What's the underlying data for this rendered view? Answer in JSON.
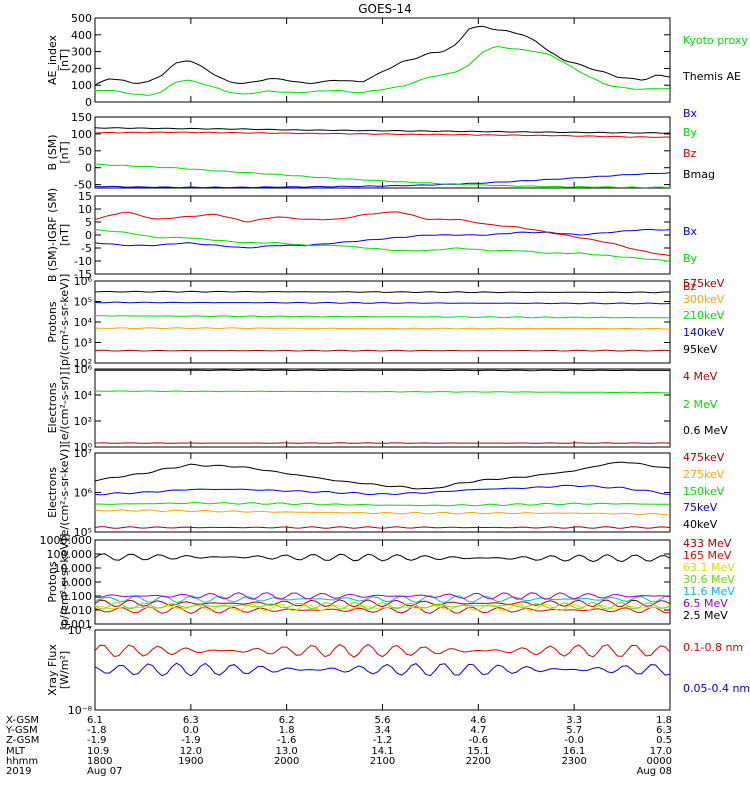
{
  "title": "GOES-14",
  "colors": {
    "black": "#000000",
    "red": "#dd0000",
    "green": "#00dd00",
    "blue": "#0000dd",
    "orange": "#ffa500",
    "cyan": "#00bbdd",
    "purple": "#9900cc",
    "darkred": "#aa0000",
    "lime": "#66dd00",
    "yellow": "#dddd00"
  },
  "chart_data": [
    {
      "type": "line",
      "ylabel": "AE_index\n[nT]",
      "ylim": [
        0,
        500
      ],
      "yticks": [
        "0",
        "100",
        "200",
        "300",
        "400",
        "500"
      ],
      "series": [
        {
          "name": "Kyoto proxy AE",
          "color": "green",
          "values": [
            70,
            70,
            60,
            45,
            40,
            60,
            120,
            130,
            110,
            85,
            60,
            45,
            55,
            65,
            60,
            55,
            60,
            65,
            70,
            60,
            55,
            70,
            80,
            95,
            120,
            150,
            160,
            180,
            220,
            300,
            330,
            320,
            310,
            300,
            280,
            240,
            190,
            150,
            110,
            90,
            80,
            75,
            80,
            80
          ]
        },
        {
          "name": "Themis AE",
          "color": "black",
          "values": [
            100,
            140,
            130,
            110,
            120,
            160,
            230,
            250,
            210,
            160,
            120,
            110,
            120,
            140,
            135,
            120,
            110,
            120,
            130,
            125,
            120,
            160,
            200,
            240,
            260,
            290,
            300,
            340,
            440,
            450,
            430,
            420,
            400,
            360,
            300,
            250,
            230,
            200,
            180,
            150,
            140,
            130,
            160,
            150
          ]
        }
      ]
    },
    {
      "type": "line",
      "ylabel": "B (SM)\n[nT]",
      "ylim": [
        -60,
        150
      ],
      "yticks": [
        "-50",
        "0",
        "50",
        "100",
        "150"
      ],
      "series": [
        {
          "name": "Bx",
          "color": "blue",
          "values": [
            -55,
            -57,
            -58,
            -58,
            -58,
            -57,
            -56,
            -55,
            -53,
            -50,
            -46,
            -40,
            -34,
            -27,
            -20,
            -15
          ]
        },
        {
          "name": "By",
          "color": "green",
          "values": [
            10,
            5,
            0,
            -8,
            -15,
            -22,
            -30,
            -36,
            -42,
            -47,
            -51,
            -54,
            -56,
            -57,
            -58,
            -58
          ]
        },
        {
          "name": "Bz",
          "color": "red",
          "values": [
            103,
            104,
            105,
            104,
            103,
            102,
            101,
            100,
            99,
            98,
            97,
            96,
            95,
            93,
            91,
            90
          ]
        },
        {
          "name": "Bmag",
          "color": "black",
          "values": [
            118,
            117,
            116,
            115,
            114,
            112,
            111,
            110,
            109,
            108,
            107,
            106,
            105,
            104,
            103,
            103
          ]
        }
      ]
    },
    {
      "type": "line",
      "ylabel": "B (SM)-IGRF (SM)\n[nT]",
      "ylim": [
        -15,
        15
      ],
      "yticks": [
        "-15",
        "-10",
        "-5",
        "0",
        "5",
        "10",
        "15"
      ],
      "series": [
        {
          "name": "Bx",
          "color": "blue",
          "values": [
            -3,
            -4,
            -4,
            -3,
            -4,
            -5,
            -4,
            -4,
            -3,
            -2,
            -1,
            0,
            0,
            0,
            1,
            1,
            0,
            1,
            2,
            2
          ]
        },
        {
          "name": "By",
          "color": "green",
          "values": [
            2,
            1,
            -1,
            -1,
            -2,
            -3,
            -3,
            -4,
            -4,
            -5,
            -6,
            -6,
            -5,
            -6,
            -6,
            -7,
            -7,
            -8,
            -9,
            -10
          ]
        },
        {
          "name": "Bz",
          "color": "red",
          "values": [
            6,
            9,
            6,
            7,
            8,
            5,
            7,
            6,
            6,
            8,
            9,
            6,
            6,
            4,
            3,
            1,
            -1,
            -3,
            -6,
            -8
          ]
        }
      ]
    },
    {
      "type": "line",
      "ylabel": "Protons\n[p/(cm²-s-sr-keV)]",
      "yscale": "log",
      "ylim": [
        100,
        1000000
      ],
      "yticks": [
        "10²",
        "10³",
        "10⁴",
        "10⁵",
        "10⁶"
      ],
      "series": [
        {
          "name": "575keV",
          "color": "darkred",
          "values": [
            400,
            400,
            400,
            400,
            400
          ]
        },
        {
          "name": "300keV",
          "color": "orange",
          "values": [
            5000,
            5000,
            4800,
            4800,
            4700
          ]
        },
        {
          "name": "210keV",
          "color": "green",
          "values": [
            20000,
            19000,
            18000,
            17000,
            16000
          ]
        },
        {
          "name": "140keV",
          "color": "blue",
          "values": [
            90000,
            88000,
            85000,
            82000,
            80000
          ]
        },
        {
          "name": "95keV",
          "color": "black",
          "values": [
            300000,
            300000,
            290000,
            280000,
            280000
          ]
        }
      ]
    },
    {
      "type": "line",
      "ylabel": "Electrons\n[e/(cm²-s-sr)]",
      "yscale": "log",
      "ylim": [
        1,
        1000000
      ],
      "yticks": [
        "10⁰",
        "10²",
        "10⁴",
        "10⁶"
      ],
      "series": [
        {
          "name": "4 MeV",
          "color": "darkred",
          "values": [
            2,
            2,
            2,
            2,
            2
          ]
        },
        {
          "name": "2 MeV",
          "color": "green",
          "values": [
            20000,
            19000,
            18000,
            17000,
            15000
          ]
        },
        {
          "name": "0.6 MeV",
          "color": "black",
          "values": [
            800000,
            800000,
            790000,
            780000,
            780000
          ]
        }
      ]
    },
    {
      "type": "line",
      "ylabel": "Electrons\n[e/(cm²-s-sr-keV)]",
      "yscale": "log",
      "ylim": [
        100000,
        10000000
      ],
      "yticks": [
        "10⁵",
        "10⁶",
        "10⁷"
      ],
      "series": [
        {
          "name": "475keV",
          "color": "darkred",
          "values": [
            130000,
            130000,
            130000,
            130000,
            130000,
            130000,
            130000,
            130000,
            130000,
            130000,
            130000,
            130000,
            130000
          ]
        },
        {
          "name": "275keV",
          "color": "orange",
          "values": [
            350000,
            350000,
            340000,
            330000,
            320000,
            310000,
            300000,
            300000,
            300000,
            300000,
            300000,
            290000,
            280000
          ]
        },
        {
          "name": "150keV",
          "color": "green",
          "values": [
            500000,
            520000,
            540000,
            530000,
            520000,
            500000,
            480000,
            470000,
            480000,
            500000,
            520000,
            520000,
            500000
          ]
        },
        {
          "name": "75keV",
          "color": "blue",
          "values": [
            900000,
            1000000,
            1200000,
            1200000,
            1100000,
            1000000,
            900000,
            1000000,
            1200000,
            1300000,
            1500000,
            1300000,
            900000
          ]
        },
        {
          "name": "40keV",
          "color": "black",
          "values": [
            2000000,
            3000000,
            5000000,
            4500000,
            3000000,
            2000000,
            1500000,
            1200000,
            2000000,
            2500000,
            3500000,
            6000000,
            4000000
          ]
        }
      ]
    },
    {
      "type": "line",
      "ylabel": "Protons\n[p/(cm²-s-sr-keV)]",
      "yscale": "log",
      "ylim": [
        0.001,
        1000
      ],
      "yticks": [
        "0.001",
        "0.010",
        "0.100",
        "1.000",
        "10.000",
        "100.000",
        "1000.000"
      ],
      "series": [
        {
          "name": "433 MeV",
          "color": "darkred",
          "values": [
            0.03,
            0.03,
            0.03,
            0.03,
            0.03
          ]
        },
        {
          "name": "165 MeV",
          "color": "red",
          "values": [
            0.01,
            0.01,
            0.01,
            0.01,
            0.01
          ]
        },
        {
          "name": "63.1 MeV",
          "color": "yellow",
          "values": [
            0.015,
            0.015,
            0.015,
            0.015,
            0.015
          ]
        },
        {
          "name": "30.6 MeV",
          "color": "lime",
          "values": [
            0.02,
            0.02,
            0.02,
            0.02,
            0.02
          ]
        },
        {
          "name": "11.6 MeV",
          "color": "cyan",
          "values": [
            0.06,
            0.06,
            0.06,
            0.06,
            0.06
          ]
        },
        {
          "name": "6.5 MeV",
          "color": "purple",
          "values": [
            0.1,
            0.1,
            0.1,
            0.1,
            0.1
          ]
        },
        {
          "name": "2.5 MeV",
          "color": "black",
          "values": [
            60,
            60,
            55,
            50,
            50
          ]
        }
      ]
    },
    {
      "type": "line",
      "ylabel": "Xray Flux\n[W/m²]",
      "yscale": "log",
      "ylim": [
        1e-08,
        1e-07
      ],
      "yticks": [
        "10⁻⁸",
        "10⁻⁷"
      ],
      "series": [
        {
          "name": "0.1-0.8 nm",
          "color": "red",
          "values": [
            5.5e-08,
            5.5e-08,
            5.5e-08,
            5.5e-08,
            5.5e-08
          ]
        },
        {
          "name": "0.05-0.4 nm",
          "color": "blue",
          "values": [
            3.2e-08,
            3.2e-08,
            3.2e-08,
            3.2e-08,
            3.2e-08
          ]
        }
      ]
    }
  ],
  "ephemeris": {
    "row_labels": [
      "X-GSM",
      "Y-GSM",
      "Z-GSM",
      "MLT",
      "hhmm",
      "2019"
    ],
    "columns": [
      {
        "values": [
          "6.1",
          "-1.8",
          "-1.9",
          "10.9",
          "1800",
          "Aug 07"
        ]
      },
      {
        "values": [
          "6.3",
          "0.0",
          "-1.9",
          "12.0",
          "1900",
          ""
        ]
      },
      {
        "values": [
          "6.2",
          "1.8",
          "-1.6",
          "13.0",
          "2000",
          ""
        ]
      },
      {
        "values": [
          "5.6",
          "3.4",
          "-1.2",
          "14.1",
          "2100",
          ""
        ]
      },
      {
        "values": [
          "4.6",
          "4.7",
          "-0.6",
          "15.1",
          "2200",
          ""
        ]
      },
      {
        "values": [
          "3.3",
          "5.7",
          "-0.0",
          "16.1",
          "2300",
          ""
        ]
      },
      {
        "values": [
          "1.8",
          "6.3",
          "0.5",
          "17.0",
          "0000",
          "Aug 08"
        ]
      }
    ]
  }
}
